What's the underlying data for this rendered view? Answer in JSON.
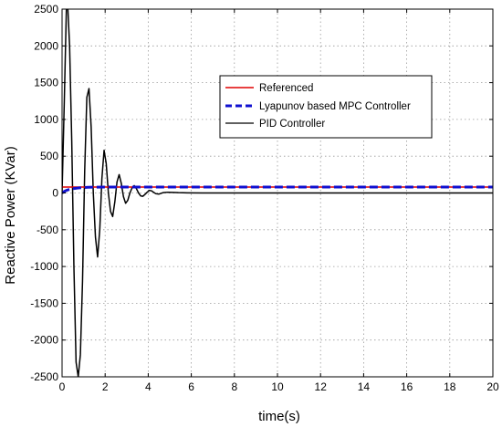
{
  "chart_data": {
    "type": "line",
    "title": "",
    "xlabel": "time(s)",
    "ylabel": "Reactive Power (KVar)",
    "xlim": [
      0,
      20
    ],
    "ylim": [
      -2500,
      2500
    ],
    "xticks": [
      0,
      2,
      4,
      6,
      8,
      10,
      12,
      14,
      16,
      18,
      20
    ],
    "yticks": [
      -2500,
      -2000,
      -1500,
      -1000,
      -500,
      0,
      500,
      1000,
      1500,
      2000,
      2500
    ],
    "grid": true,
    "legend_position": "top-right",
    "series": [
      {
        "name": "Referenced",
        "color": "#e00000",
        "style": "solid",
        "x": [
          0,
          20
        ],
        "y": [
          80,
          80
        ]
      },
      {
        "name": "Lyapunov based MPC Controller",
        "color": "#1010d0",
        "style": "dashed",
        "x": [
          0,
          0.1,
          0.2,
          0.3,
          0.4,
          0.5,
          0.6,
          0.7,
          0.8,
          1.0,
          1.2,
          1.5,
          2.0,
          20
        ],
        "y": [
          0,
          20,
          35,
          45,
          52,
          58,
          62,
          66,
          70,
          74,
          77,
          79,
          80,
          80
        ]
      },
      {
        "name": "PID Controller",
        "color": "#000000",
        "style": "solid",
        "x": [
          0,
          0.1,
          0.2,
          0.27,
          0.35,
          0.45,
          0.55,
          0.65,
          0.75,
          0.85,
          0.95,
          1.05,
          1.15,
          1.25,
          1.35,
          1.45,
          1.55,
          1.65,
          1.75,
          1.85,
          1.95,
          2.05,
          2.15,
          2.25,
          2.35,
          2.45,
          2.55,
          2.65,
          2.75,
          2.85,
          2.95,
          3.05,
          3.15,
          3.25,
          3.35,
          3.45,
          3.55,
          3.65,
          3.75,
          3.85,
          3.95,
          4.05,
          4.15,
          4.25,
          4.35,
          4.5,
          4.7,
          4.9,
          5.1,
          5.4,
          5.8,
          6.5,
          20
        ],
        "y": [
          0,
          1200,
          2500,
          2500,
          2000,
          700,
          -1000,
          -2300,
          -2500,
          -2200,
          -1200,
          300,
          1300,
          1420,
          900,
          0,
          -600,
          -870,
          -500,
          200,
          580,
          400,
          0,
          -250,
          -320,
          -120,
          150,
          250,
          130,
          -50,
          -140,
          -100,
          0,
          70,
          100,
          60,
          0,
          -40,
          -45,
          -20,
          10,
          35,
          30,
          10,
          -10,
          -15,
          5,
          10,
          8,
          4,
          2,
          0,
          0
        ]
      }
    ]
  }
}
